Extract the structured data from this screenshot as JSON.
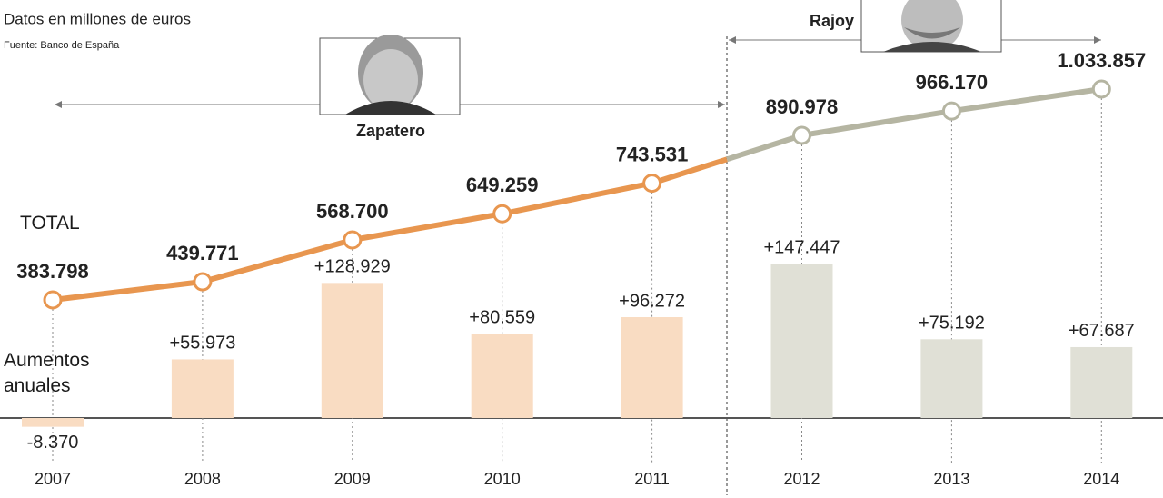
{
  "subtitle": "Datos en millones de euros",
  "source": "Fuente: Banco de España",
  "chart_data": {
    "type": "combo",
    "categories": [
      "2007",
      "2008",
      "2009",
      "2010",
      "2011",
      "2012",
      "2013",
      "2014"
    ],
    "series": [
      {
        "name": "TOTAL",
        "type": "line",
        "values": [
          383798,
          439771,
          568700,
          649259,
          743531,
          890978,
          966170,
          1033857
        ],
        "value_labels": [
          "383.798",
          "439.771",
          "568.700",
          "649.259",
          "743.531",
          "890.978",
          "966.170",
          "1.033.857"
        ],
        "colors": [
          "#e8964f",
          "#e8964f",
          "#e8964f",
          "#e8964f",
          "#e8964f",
          "#b5b5a2",
          "#b5b5a2",
          "#b5b5a2"
        ]
      },
      {
        "name": "Aumentos anuales",
        "type": "bar",
        "values": [
          -8370,
          55973,
          128929,
          80559,
          96272,
          147447,
          75192,
          67687
        ],
        "value_labels": [
          "-8.370",
          "+55.973",
          "+128.929",
          "+80.559",
          "+96.272",
          "+147.447",
          "+75.192",
          "+67.687"
        ],
        "colors": [
          "#f9dcc2",
          "#f9dcc2",
          "#f9dcc2",
          "#f9dcc2",
          "#f9dcc2",
          "#e0e0d6",
          "#e0e0d6",
          "#e0e0d6"
        ]
      }
    ],
    "annotations": [
      {
        "text": "Zapatero"
      },
      {
        "text": "Rajoy"
      }
    ]
  }
}
